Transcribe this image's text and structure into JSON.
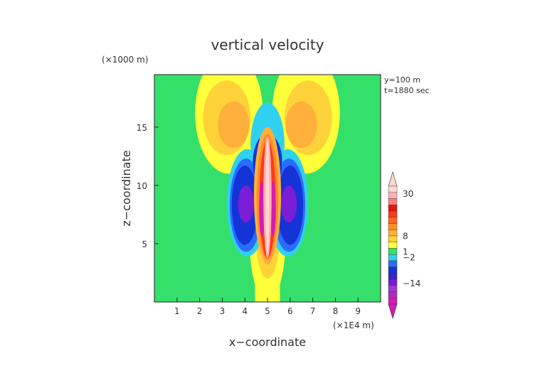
{
  "chart_data": {
    "type": "heatmap",
    "title": "vertical velocity",
    "xlabel": "x−coordinate",
    "ylabel": "z−coordinate",
    "x_unit": "(×1E4 m)",
    "y_unit": "(×1000 m)",
    "annotations": [
      "y=100  m",
      "t=1880 sec"
    ],
    "x_range": [
      0,
      10
    ],
    "y_range": [
      0,
      19.5
    ],
    "x_ticks": [
      "1",
      "2",
      "3",
      "4",
      "5",
      "6",
      "7",
      "8",
      "9"
    ],
    "y_ticks": [
      "5",
      "10",
      "15"
    ],
    "colorbar": {
      "tick_labels": [
        "30",
        "8",
        "1",
        "−2",
        "−14"
      ],
      "colors": [
        "#d81ab4",
        "#b02aba",
        "#9b3bcf",
        "#7a1dd6",
        "#3a24c4",
        "#1434d8",
        "#2a6cff",
        "#2fd0f0",
        "#35e06a",
        "#ffff3a",
        "#ffd23a",
        "#ffb03a",
        "#ff8c2a",
        "#ff6420",
        "#ff3a1a",
        "#e8160e",
        "#ff8080",
        "#ffb0b0",
        "#ffd8d0"
      ]
    },
    "features": {
      "background": "near zero (green)",
      "central_updraft": "positive up to ~30, x≈5, z≈2–15",
      "flanking_downdrafts": "negative down to ~−14, x≈4.2 and x≈5.8, z≈4–12"
    }
  },
  "colors": {
    "zero": "#35e06a",
    "yellow": "#ffff3a",
    "orange_light": "#ffd23a",
    "orange": "#ffb03a",
    "orange_dark": "#ff8c2a",
    "red": "#ff3a1a",
    "pink": "#ffb0b0",
    "pale": "#ffd8d0",
    "cyan": "#2fd0f0",
    "light_blue": "#2a6cff",
    "blue": "#1434d8",
    "purple": "#7a1dd6",
    "magenta": "#d81ab4"
  }
}
